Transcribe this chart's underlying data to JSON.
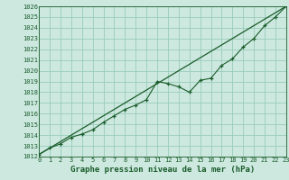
{
  "title": "Graphe pression niveau de la mer (hPa)",
  "bg_color": "#cce8df",
  "grid_color": "#99ccbb",
  "line_color": "#1a5c2a",
  "marker_color": "#1a5c2a",
  "ylim": [
    1012,
    1026
  ],
  "xlim": [
    0,
    23
  ],
  "yticks": [
    1012,
    1013,
    1014,
    1015,
    1016,
    1017,
    1018,
    1019,
    1020,
    1021,
    1022,
    1023,
    1024,
    1025,
    1026
  ],
  "xticks": [
    0,
    1,
    2,
    3,
    4,
    5,
    6,
    7,
    8,
    9,
    10,
    11,
    12,
    13,
    14,
    15,
    16,
    17,
    18,
    19,
    20,
    21,
    22,
    23
  ],
  "actual_x": [
    0,
    1,
    2,
    3,
    4,
    5,
    6,
    7,
    8,
    9,
    10,
    11,
    12,
    13,
    14,
    15,
    16,
    17,
    18,
    19,
    20,
    21,
    22,
    23
  ],
  "actual_y": [
    1012.2,
    1012.8,
    1013.2,
    1013.8,
    1014.1,
    1014.5,
    1015.2,
    1015.8,
    1016.4,
    1016.8,
    1017.3,
    1019.0,
    1018.8,
    1018.5,
    1018.0,
    1019.1,
    1019.3,
    1020.5,
    1021.1,
    1022.2,
    1023.0,
    1024.2,
    1025.0,
    1026.0
  ],
  "trend_x": [
    0,
    23
  ],
  "trend_y": [
    1012.2,
    1026.0
  ],
  "title_fontsize": 6.5,
  "tick_fontsize": 5.0
}
